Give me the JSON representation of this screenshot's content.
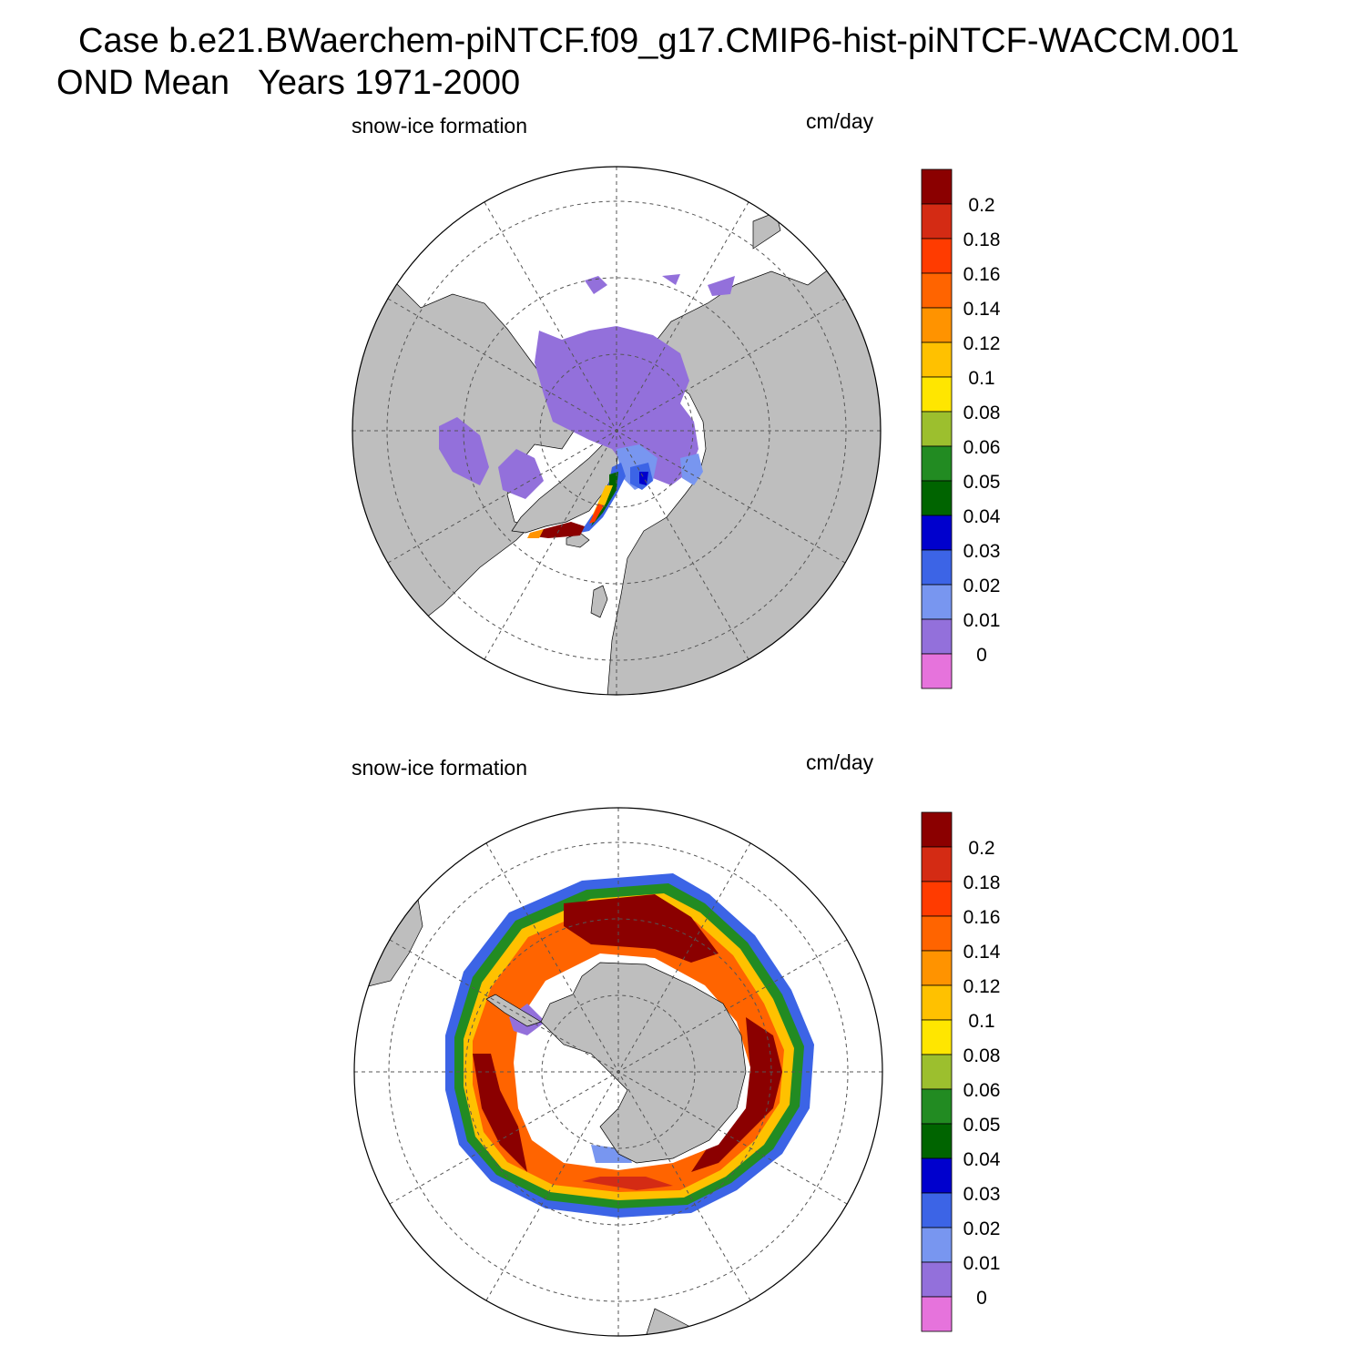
{
  "title_line1": "Case b.e21.BWaerchem-piNTCF.f09_g17.CMIP6-hist-piNTCF-WACCM.001",
  "title_line2": "OND Mean   Years 1971-2000",
  "colors": {
    "land": "#bebebe",
    "ocean": "#ffffff",
    "coastline": "#000000",
    "grid": "#555555"
  },
  "colorbar": {
    "labels": [
      "0.2",
      "0.18",
      "0.16",
      "0.14",
      "0.12",
      "0.1",
      "0.08",
      "0.06",
      "0.05",
      "0.04",
      "0.03",
      "0.02",
      "0.01",
      "0"
    ],
    "colors": [
      "#8b0000",
      "#d42b14",
      "#ff3b00",
      "#ff6400",
      "#ff9300",
      "#ffc100",
      "#ffe600",
      "#9cbf2e",
      "#228b22",
      "#006400",
      "#0000cd",
      "#3c64e6",
      "#7896f0",
      "#9370db",
      "#e673dc"
    ]
  },
  "panels": [
    {
      "id": "north",
      "hemisphere": "north-polar-stereographic",
      "left_label": "snow-ice formation",
      "right_label": "cm/day"
    },
    {
      "id": "south",
      "hemisphere": "south-polar-stereographic",
      "left_label": "snow-ice formation",
      "right_label": "cm/day"
    }
  ]
}
